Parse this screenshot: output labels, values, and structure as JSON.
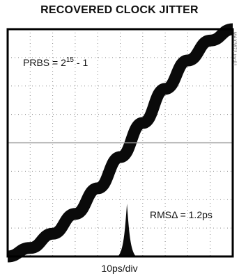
{
  "chart_data": {
    "type": "line",
    "title": "RECOVERED CLOCK JITTER",
    "xlabel": "10ps/div",
    "ylabel": "",
    "grid": true,
    "grid_divisions": {
      "x": 10,
      "y": 8
    },
    "annotations": {
      "prbs": {
        "prefix": "PRBS = 2",
        "exponent": "15",
        "suffix": " - 1"
      },
      "rms": "RMSΔ = 1.2ps"
    },
    "trace": {
      "description_free": true,
      "x": [
        0,
        1,
        2,
        3,
        4,
        5,
        6,
        7,
        8,
        9,
        10
      ],
      "y": [
        -4,
        -3.7,
        -3.2,
        -2.5,
        -1.6,
        -0.5,
        0.7,
        1.9,
        2.9,
        3.6,
        4.0
      ]
    },
    "histogram_peak_div": 5.3,
    "side_code": "MAX3872 toc01",
    "colors": {
      "trace": "#0a0a0a",
      "grid": "#8a8a8a",
      "frame": "#000000",
      "center": "#9a9a9a"
    }
  }
}
